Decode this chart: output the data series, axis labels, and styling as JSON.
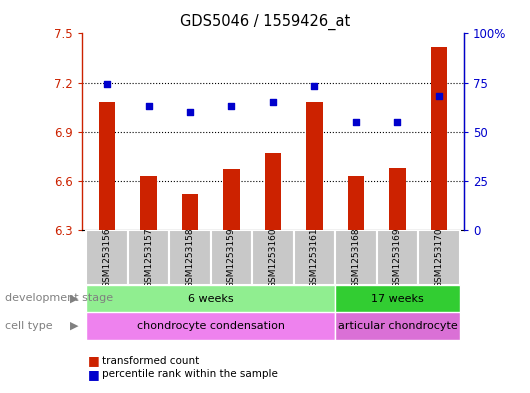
{
  "title": "GDS5046 / 1559426_at",
  "samples": [
    "GSM1253156",
    "GSM1253157",
    "GSM1253158",
    "GSM1253159",
    "GSM1253160",
    "GSM1253161",
    "GSM1253168",
    "GSM1253169",
    "GSM1253170"
  ],
  "bar_values": [
    7.08,
    6.63,
    6.52,
    6.67,
    6.77,
    7.08,
    6.63,
    6.68,
    7.42
  ],
  "scatter_values": [
    74,
    63,
    60,
    63,
    65,
    73,
    55,
    55,
    68
  ],
  "bar_color": "#cc2200",
  "scatter_color": "#0000cc",
  "ylim_left": [
    6.3,
    7.5
  ],
  "ylim_right": [
    0,
    100
  ],
  "yticks_left": [
    6.3,
    6.6,
    6.9,
    7.2,
    7.5
  ],
  "ytick_labels_left": [
    "6.3",
    "6.6",
    "6.9",
    "7.2",
    "7.5"
  ],
  "yticks_right": [
    0,
    25,
    50,
    75,
    100
  ],
  "ytick_labels_right": [
    "0",
    "25",
    "50",
    "75",
    "100%"
  ],
  "hlines": [
    7.2,
    6.9,
    6.6
  ],
  "dev_stage_groups": [
    {
      "label": "6 weeks",
      "start": 0,
      "end": 6,
      "color": "#90ee90"
    },
    {
      "label": "17 weeks",
      "start": 6,
      "end": 9,
      "color": "#32cd32"
    }
  ],
  "cell_type_groups": [
    {
      "label": "chondrocyte condensation",
      "start": 0,
      "end": 6,
      "color": "#ee82ee"
    },
    {
      "label": "articular chondrocyte",
      "start": 6,
      "end": 9,
      "color": "#da70d6"
    }
  ],
  "dev_stage_label": "development stage",
  "cell_type_label": "cell type",
  "legend_bar_label": "transformed count",
  "legend_scatter_label": "percentile rank within the sample",
  "bg_color": "#ffffff",
  "plot_bg_color": "#ffffff",
  "axis_color_left": "#cc2200",
  "axis_color_right": "#0000cc",
  "bar_base": 6.3,
  "sample_box_color": "#c8c8c8"
}
